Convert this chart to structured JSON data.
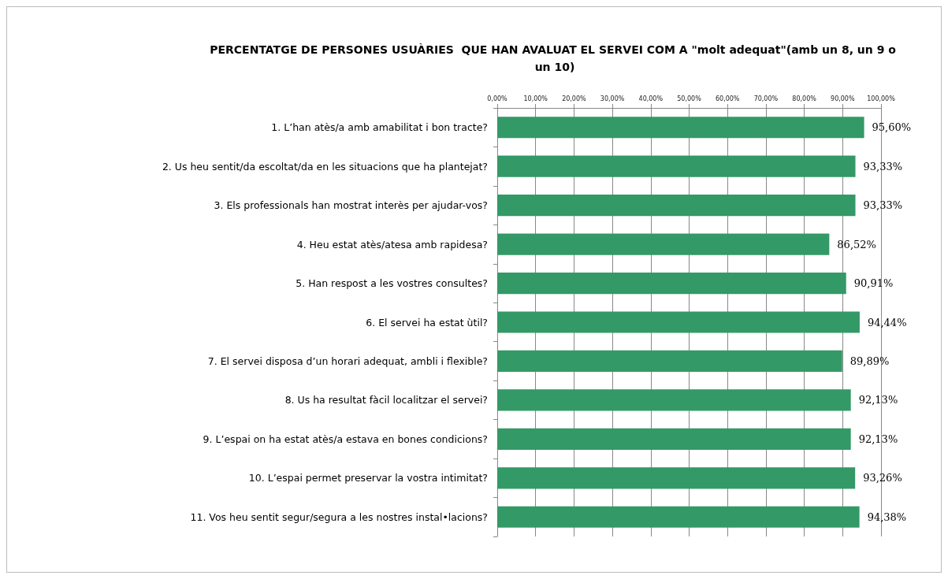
{
  "chart_data": {
    "type": "bar",
    "orientation": "horizontal",
    "title": "PERCENTATGE DE PERSONES USUÀRIES  QUE HAN AVALUAT EL SERVEI COM A \"molt adequat\"(amb un 8, un 9 o un 10)",
    "categories": [
      "1. L’han atès/a amb amabilitat i bon tracte?",
      "2. Us heu sentit/da escoltat/da en les situacions que ha plantejat?",
      "3. Els professionals han mostrat interès per ajudar-vos?",
      "4. Heu estat atès/atesa amb rapidesa?",
      "5. Han respost a les vostres consultes?",
      "6. El servei ha estat ùtil?",
      "7. El servei disposa d’un horari adequat, ambli i flexible?",
      "8. Us ha resultat fàcil localitzar el servei?",
      "9. L’espai on ha estat atès/a estava en bones condicions?",
      "10. L’espai permet preservar la vostra intimitat?",
      "11. Vos heu sentit segur/segura a les nostres instal•lacions?"
    ],
    "values": [
      95.6,
      93.33,
      93.33,
      86.52,
      90.91,
      94.44,
      89.89,
      92.13,
      92.13,
      93.26,
      94.38
    ],
    "value_labels": [
      "95,60%",
      "93,33%",
      "93,33%",
      "86,52%",
      "90,91%",
      "94,44%",
      "89,89%",
      "92,13%",
      "92,13%",
      "93,26%",
      "94,38%"
    ],
    "color": "#339966",
    "xlim": [
      0,
      100
    ],
    "xticks": [
      {
        "value": 0,
        "label": "0,00%"
      },
      {
        "value": 10,
        "label": "10,00%"
      },
      {
        "value": 20,
        "label": "20,00%"
      },
      {
        "value": 30,
        "label": "30,00%"
      },
      {
        "value": 40,
        "label": "40,00%"
      },
      {
        "value": 50,
        "label": "50,00%"
      },
      {
        "value": 60,
        "label": "60,00%"
      },
      {
        "value": 70,
        "label": "70,00%"
      },
      {
        "value": 80,
        "label": "80,00%"
      },
      {
        "value": 90,
        "label": "90,00%"
      },
      {
        "value": 100,
        "label": "100,00%"
      }
    ],
    "grid": "x"
  }
}
